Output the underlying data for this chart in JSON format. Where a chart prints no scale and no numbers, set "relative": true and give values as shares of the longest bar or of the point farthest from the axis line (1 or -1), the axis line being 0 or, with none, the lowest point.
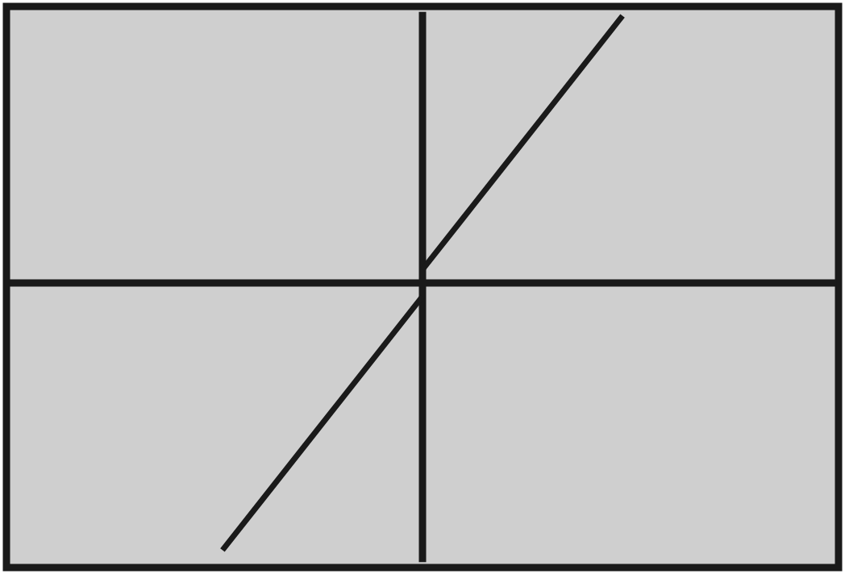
{
  "chart_data": {
    "type": "line",
    "relative": true,
    "categories": [
      null,
      null,
      null,
      null,
      null,
      null,
      null,
      null,
      null,
      null,
      null,
      null,
      null,
      null,
      null,
      null,
      null,
      null,
      null,
      null,
      null
    ],
    "series": [
      {
        "color": "#1a1a1a",
        "values": [
          null,
          null,
          null,
          null,
          null,
          -1,
          -0.81,
          -0.62,
          -0.43,
          -0.24,
          -0.05,
          null,
          null,
          null,
          null,
          null,
          null,
          null,
          null,
          null,
          null
        ]
      },
      {
        "color": "#1a1a1a",
        "values": [
          null,
          null,
          null,
          null,
          null,
          null,
          null,
          null,
          null,
          null,
          0.05,
          0.24,
          0.43,
          0.62,
          0.81,
          1,
          null,
          null,
          null,
          null,
          null
        ]
      }
    ],
    "marker": "none",
    "line_style": "solid"
  }
}
